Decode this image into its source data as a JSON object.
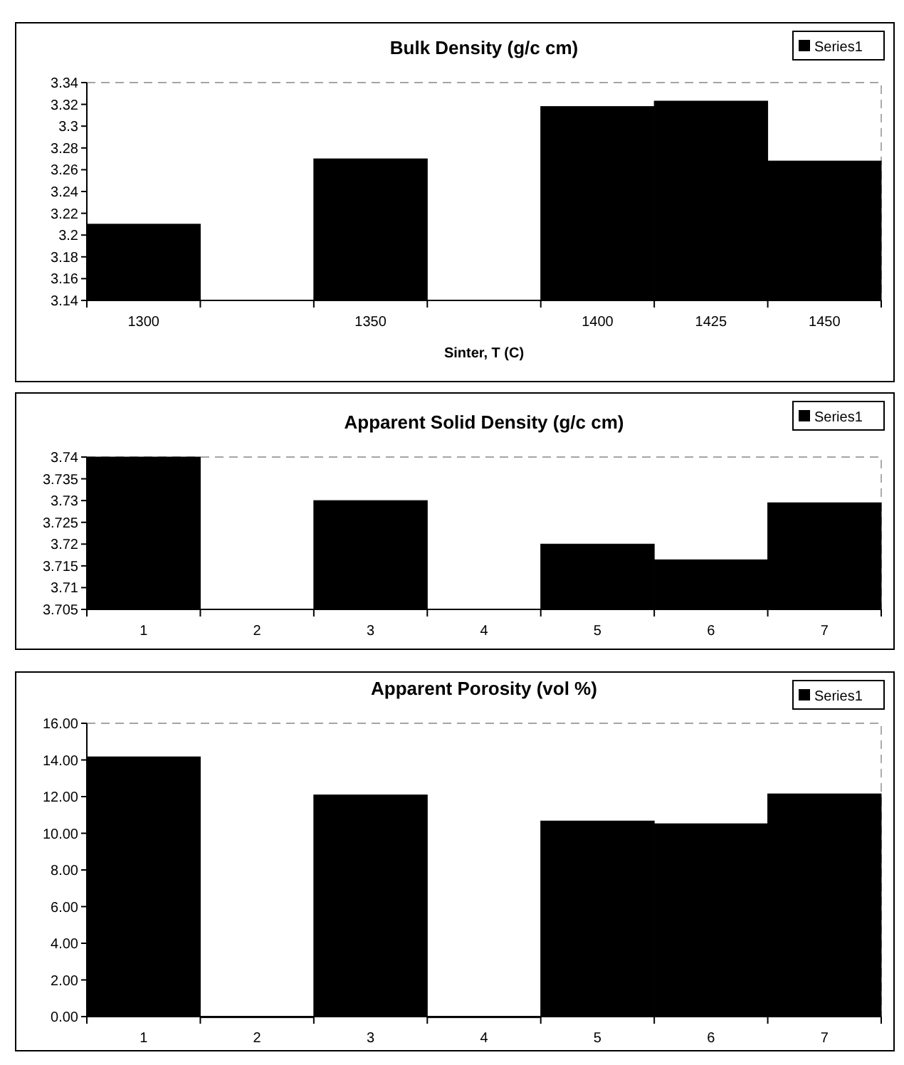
{
  "chart_data": [
    {
      "type": "bar",
      "title": "Bulk Density (g/c cm)",
      "xlabel": "Sinter, T (C)",
      "categories": [
        "1300",
        null,
        "1350",
        null,
        "1400",
        "1425",
        "1450"
      ],
      "series": [
        {
          "name": "Series1",
          "color": "#000000",
          "values": [
            3.21,
            null,
            3.27,
            null,
            3.318,
            3.323,
            3.268
          ]
        }
      ],
      "ylim": [
        3.14,
        3.34
      ],
      "yticks": [
        3.14,
        3.16,
        3.18,
        3.2,
        3.22,
        3.24,
        3.26,
        3.28,
        3.3,
        3.32,
        3.34
      ],
      "legend": "top right"
    },
    {
      "type": "bar",
      "title": "Apparent Solid Density (g/c cm)",
      "categories": [
        "1",
        "2",
        "3",
        "4",
        "5",
        "6",
        "7"
      ],
      "series": [
        {
          "name": "Series1",
          "color": "#000000",
          "values": [
            3.74,
            null,
            3.73,
            null,
            3.72,
            3.7164,
            3.7295
          ]
        }
      ],
      "ylim": [
        3.705,
        3.74
      ],
      "yticks": [
        3.705,
        3.71,
        3.715,
        3.72,
        3.725,
        3.73,
        3.735,
        3.74
      ],
      "legend": "top right"
    },
    {
      "type": "bar",
      "title": "Apparent Porosity (vol %)",
      "categories": [
        "1",
        "2",
        "3",
        "4",
        "5",
        "6",
        "7"
      ],
      "series": [
        {
          "name": "Series1",
          "color": "#000000",
          "values": [
            14.17,
            0,
            12.09,
            0,
            10.67,
            10.52,
            12.15
          ]
        }
      ],
      "ylim": [
        0,
        16
      ],
      "yticks": [
        {
          "value": 0,
          "label": "0.00"
        },
        {
          "value": 2,
          "label": "2.00"
        },
        {
          "value": 4,
          "label": "4.00"
        },
        {
          "value": 6,
          "label": "6.00"
        },
        {
          "value": 8,
          "label": "8.00"
        },
        {
          "value": 10,
          "label": "10.00"
        },
        {
          "value": 12,
          "label": "12.00"
        },
        {
          "value": 14,
          "label": "14.00"
        },
        {
          "value": 16,
          "label": "16.00"
        }
      ],
      "legend": "top right"
    }
  ]
}
